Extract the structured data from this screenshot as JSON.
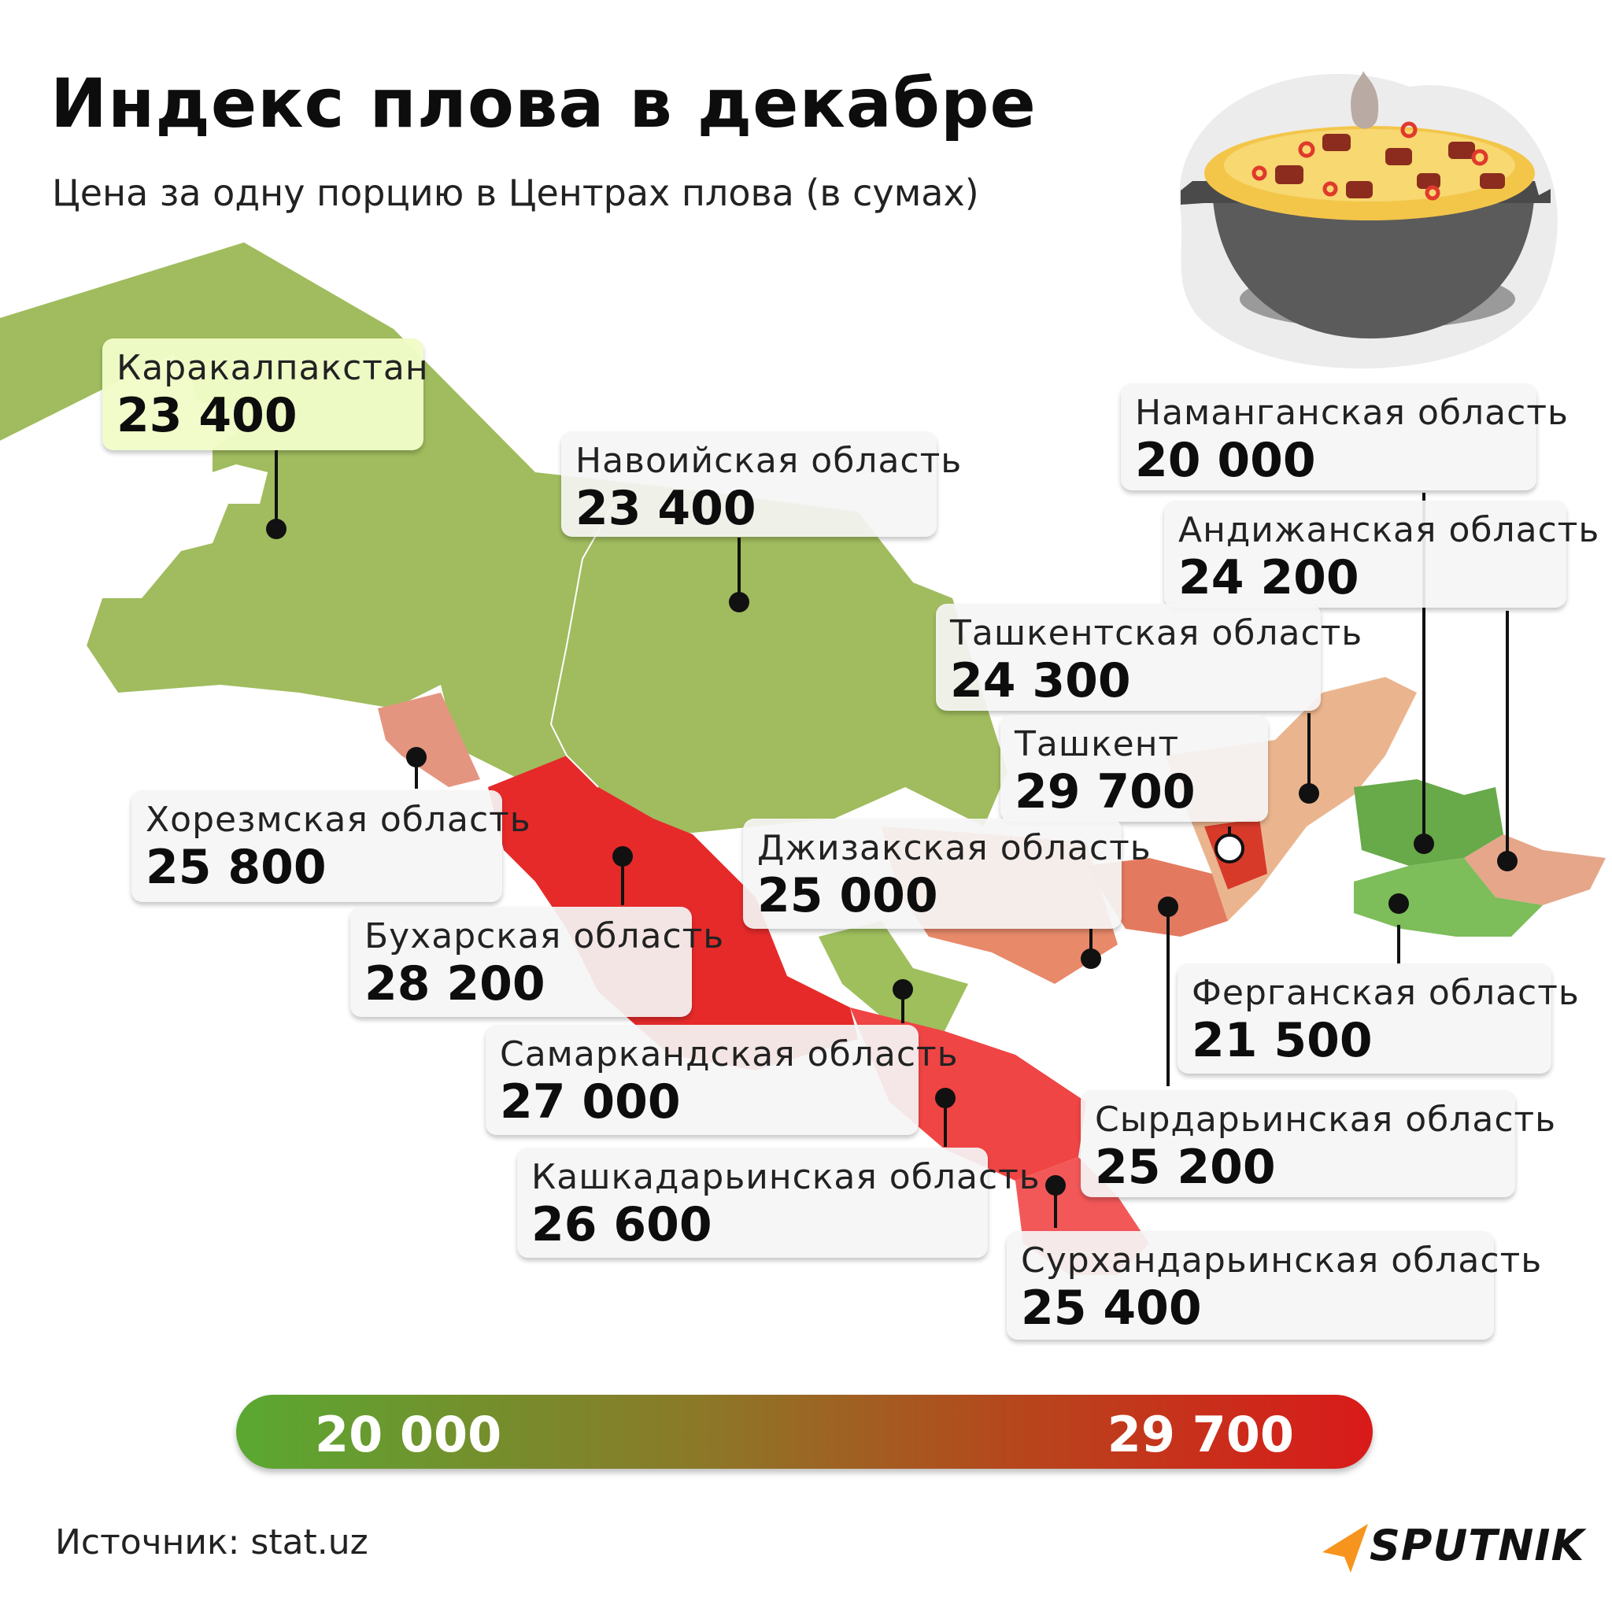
{
  "title": "Индекс плова в декабре",
  "subtitle": "Цена за одну порцию в Центрах плова (в сумах)",
  "regions": [
    {
      "id": "karakalpakstan",
      "name": "Каракалпакстан",
      "value": "23 400"
    },
    {
      "id": "navoi",
      "name": "Навоийская область",
      "value": "23 400"
    },
    {
      "id": "namangan",
      "name": "Наманганская область",
      "value": "20 000"
    },
    {
      "id": "andijan",
      "name": "Андижанская область",
      "value": "24 200"
    },
    {
      "id": "tashkent-region",
      "name": "Ташкентская область",
      "value": "24 300"
    },
    {
      "id": "tashkent",
      "name": "Ташкент",
      "value": "29 700"
    },
    {
      "id": "khorezm",
      "name": "Хорезмская область",
      "value": "25 800"
    },
    {
      "id": "jizzakh",
      "name": "Джизакская область",
      "value": "25 000"
    },
    {
      "id": "bukhara",
      "name": "Бухарская область",
      "value": "28 200"
    },
    {
      "id": "fergana",
      "name": "Ферганская область",
      "value": "21 500"
    },
    {
      "id": "samarkand",
      "name": "Самаркандская область",
      "value": "27 000"
    },
    {
      "id": "syrdarya",
      "name": "Сырдарьинская область",
      "value": "25 200"
    },
    {
      "id": "kashkadarya",
      "name": "Кашкадарьинская область",
      "value": "26 600"
    },
    {
      "id": "surkhandarya",
      "name": "Сурхандарьинская область",
      "value": "25 400"
    }
  ],
  "legend": {
    "min": "20 000",
    "max": "29 700",
    "min_color": "#5aa832",
    "max_color": "#d91a1a"
  },
  "source": "Источник: stat.uz",
  "brand": "SPUTNIK",
  "colors": {
    "brand_accent": "#f7941d"
  }
}
